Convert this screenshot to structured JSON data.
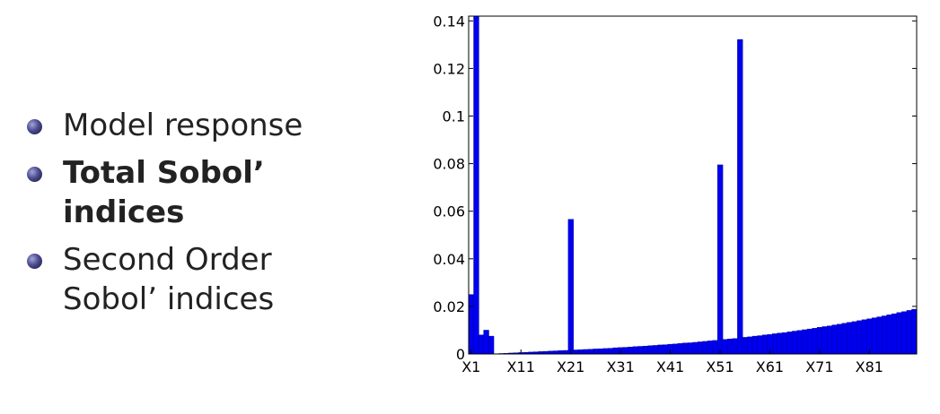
{
  "bullets": [
    {
      "label": "Model response",
      "bold": false
    },
    {
      "label": "Total Sobol’ indices",
      "bold": true
    },
    {
      "label": "Second Order Sobol’ indices",
      "bold": false
    }
  ],
  "chart_data": {
    "type": "bar",
    "title": "",
    "xlabel": "",
    "ylabel": "",
    "ylim": [
      0,
      0.142
    ],
    "yticks": [
      "0",
      "0.02",
      "0.04",
      "0.06",
      "0.08",
      "0.1",
      "0.12",
      "0.14"
    ],
    "xticks": [
      "X1",
      "X11",
      "X21",
      "X31",
      "X41",
      "X51",
      "X61",
      "X71",
      "X81"
    ],
    "bar_color": "#0000ee",
    "grid": false,
    "values": [
      0.025,
      0.142,
      0.008,
      0.01,
      0.0075,
      0.0,
      0.0002,
      0.0003,
      0.0004,
      0.0005,
      0.0006,
      0.0007,
      0.0008,
      0.0009,
      0.001,
      0.0011,
      0.0012,
      0.0013,
      0.0014,
      0.0015,
      0.0566,
      0.0017,
      0.0018,
      0.0019,
      0.002,
      0.0021,
      0.0022,
      0.0023,
      0.0024,
      0.0026,
      0.0027,
      0.0028,
      0.0029,
      0.0031,
      0.0032,
      0.0033,
      0.0035,
      0.0036,
      0.0038,
      0.0039,
      0.0041,
      0.0042,
      0.0044,
      0.0046,
      0.0047,
      0.0049,
      0.0051,
      0.0053,
      0.0055,
      0.0057,
      0.0795,
      0.0061,
      0.0063,
      0.0065,
      0.1322,
      0.007,
      0.0072,
      0.0075,
      0.0077,
      0.008,
      0.0082,
      0.0085,
      0.0088,
      0.009,
      0.0093,
      0.0096,
      0.0099,
      0.0102,
      0.0105,
      0.0108,
      0.0112,
      0.0115,
      0.0118,
      0.0122,
      0.0125,
      0.0129,
      0.0133,
      0.0136,
      0.014,
      0.0144,
      0.0148,
      0.0152,
      0.0156,
      0.016,
      0.0165,
      0.0169,
      0.0174,
      0.0178,
      0.0183,
      0.0188
    ]
  }
}
